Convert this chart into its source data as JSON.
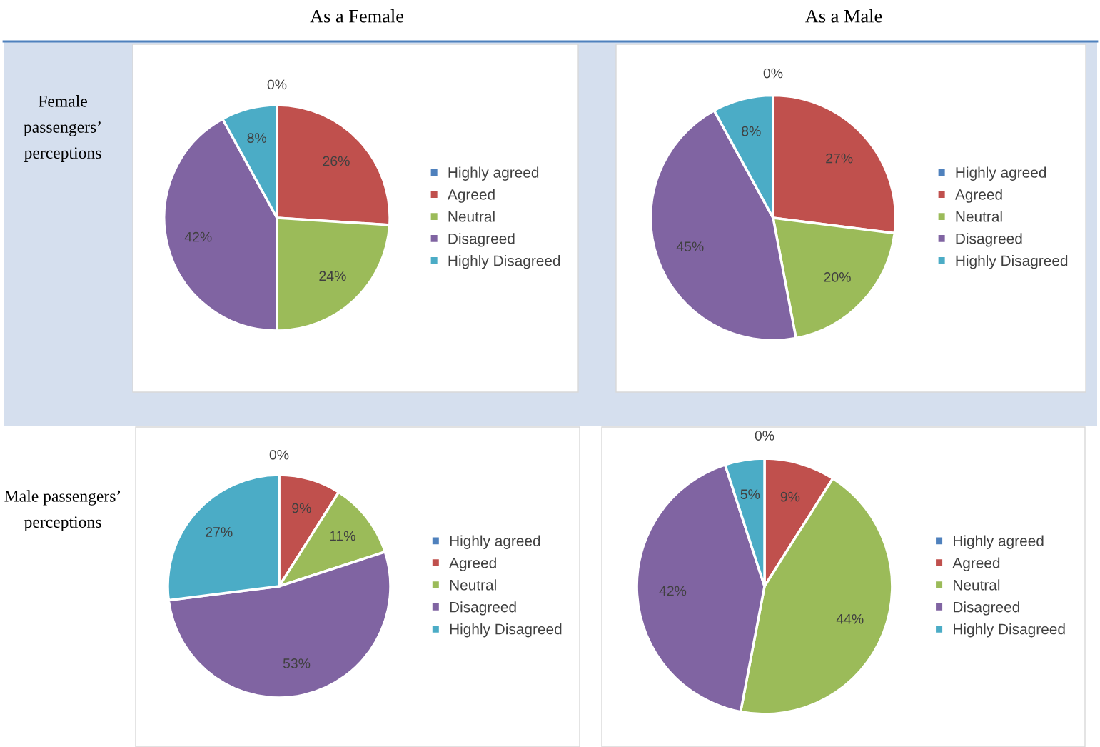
{
  "chart_data": [
    {
      "type": "pie",
      "title": "As a Female",
      "annotations": [
        "Female passengers’ perceptions"
      ],
      "categories": [
        "Highly agreed",
        "Agreed",
        "Neutral",
        "Disagreed",
        "Highly Disagreed"
      ],
      "values": [
        0,
        26,
        24,
        42,
        8
      ],
      "value_labels": [
        "0%",
        "26%",
        "24%",
        "42%",
        "8%"
      ],
      "colors": [
        "#4f81bd",
        "#c0504d",
        "#9bbb59",
        "#8064a2",
        "#4bacc6"
      ],
      "legend": "right"
    },
    {
      "type": "pie",
      "title": "As a Male",
      "categories": [
        "Highly agreed",
        "Agreed",
        "Neutral",
        "Disagreed",
        "Highly Disagreed"
      ],
      "values": [
        0,
        27,
        20,
        45,
        8
      ],
      "value_labels": [
        "0%",
        "27%",
        "20%",
        "45%",
        "8%"
      ],
      "colors": [
        "#4f81bd",
        "#c0504d",
        "#9bbb59",
        "#8064a2",
        "#4bacc6"
      ],
      "legend": "right"
    },
    {
      "type": "pie",
      "annotations": [
        "Male passengers’ perceptions"
      ],
      "categories": [
        "Highly agreed",
        "Agreed",
        "Neutral",
        "Disagreed",
        "Highly Disagreed"
      ],
      "values": [
        0,
        9,
        11,
        53,
        27
      ],
      "value_labels": [
        "0%",
        "9%",
        "11%",
        "53%",
        "27%"
      ],
      "colors": [
        "#4f81bd",
        "#c0504d",
        "#9bbb59",
        "#8064a2",
        "#4bacc6"
      ],
      "legend": "right"
    },
    {
      "type": "pie",
      "categories": [
        "Highly agreed",
        "Agreed",
        "Neutral",
        "Disagreed",
        "Highly Disagreed"
      ],
      "values": [
        0,
        9,
        44,
        42,
        5
      ],
      "value_labels": [
        "0%",
        "9%",
        "44%",
        "42%",
        "5%"
      ],
      "colors": [
        "#4f81bd",
        "#c0504d",
        "#9bbb59",
        "#8064a2",
        "#4bacc6"
      ],
      "legend": "right"
    }
  ]
}
